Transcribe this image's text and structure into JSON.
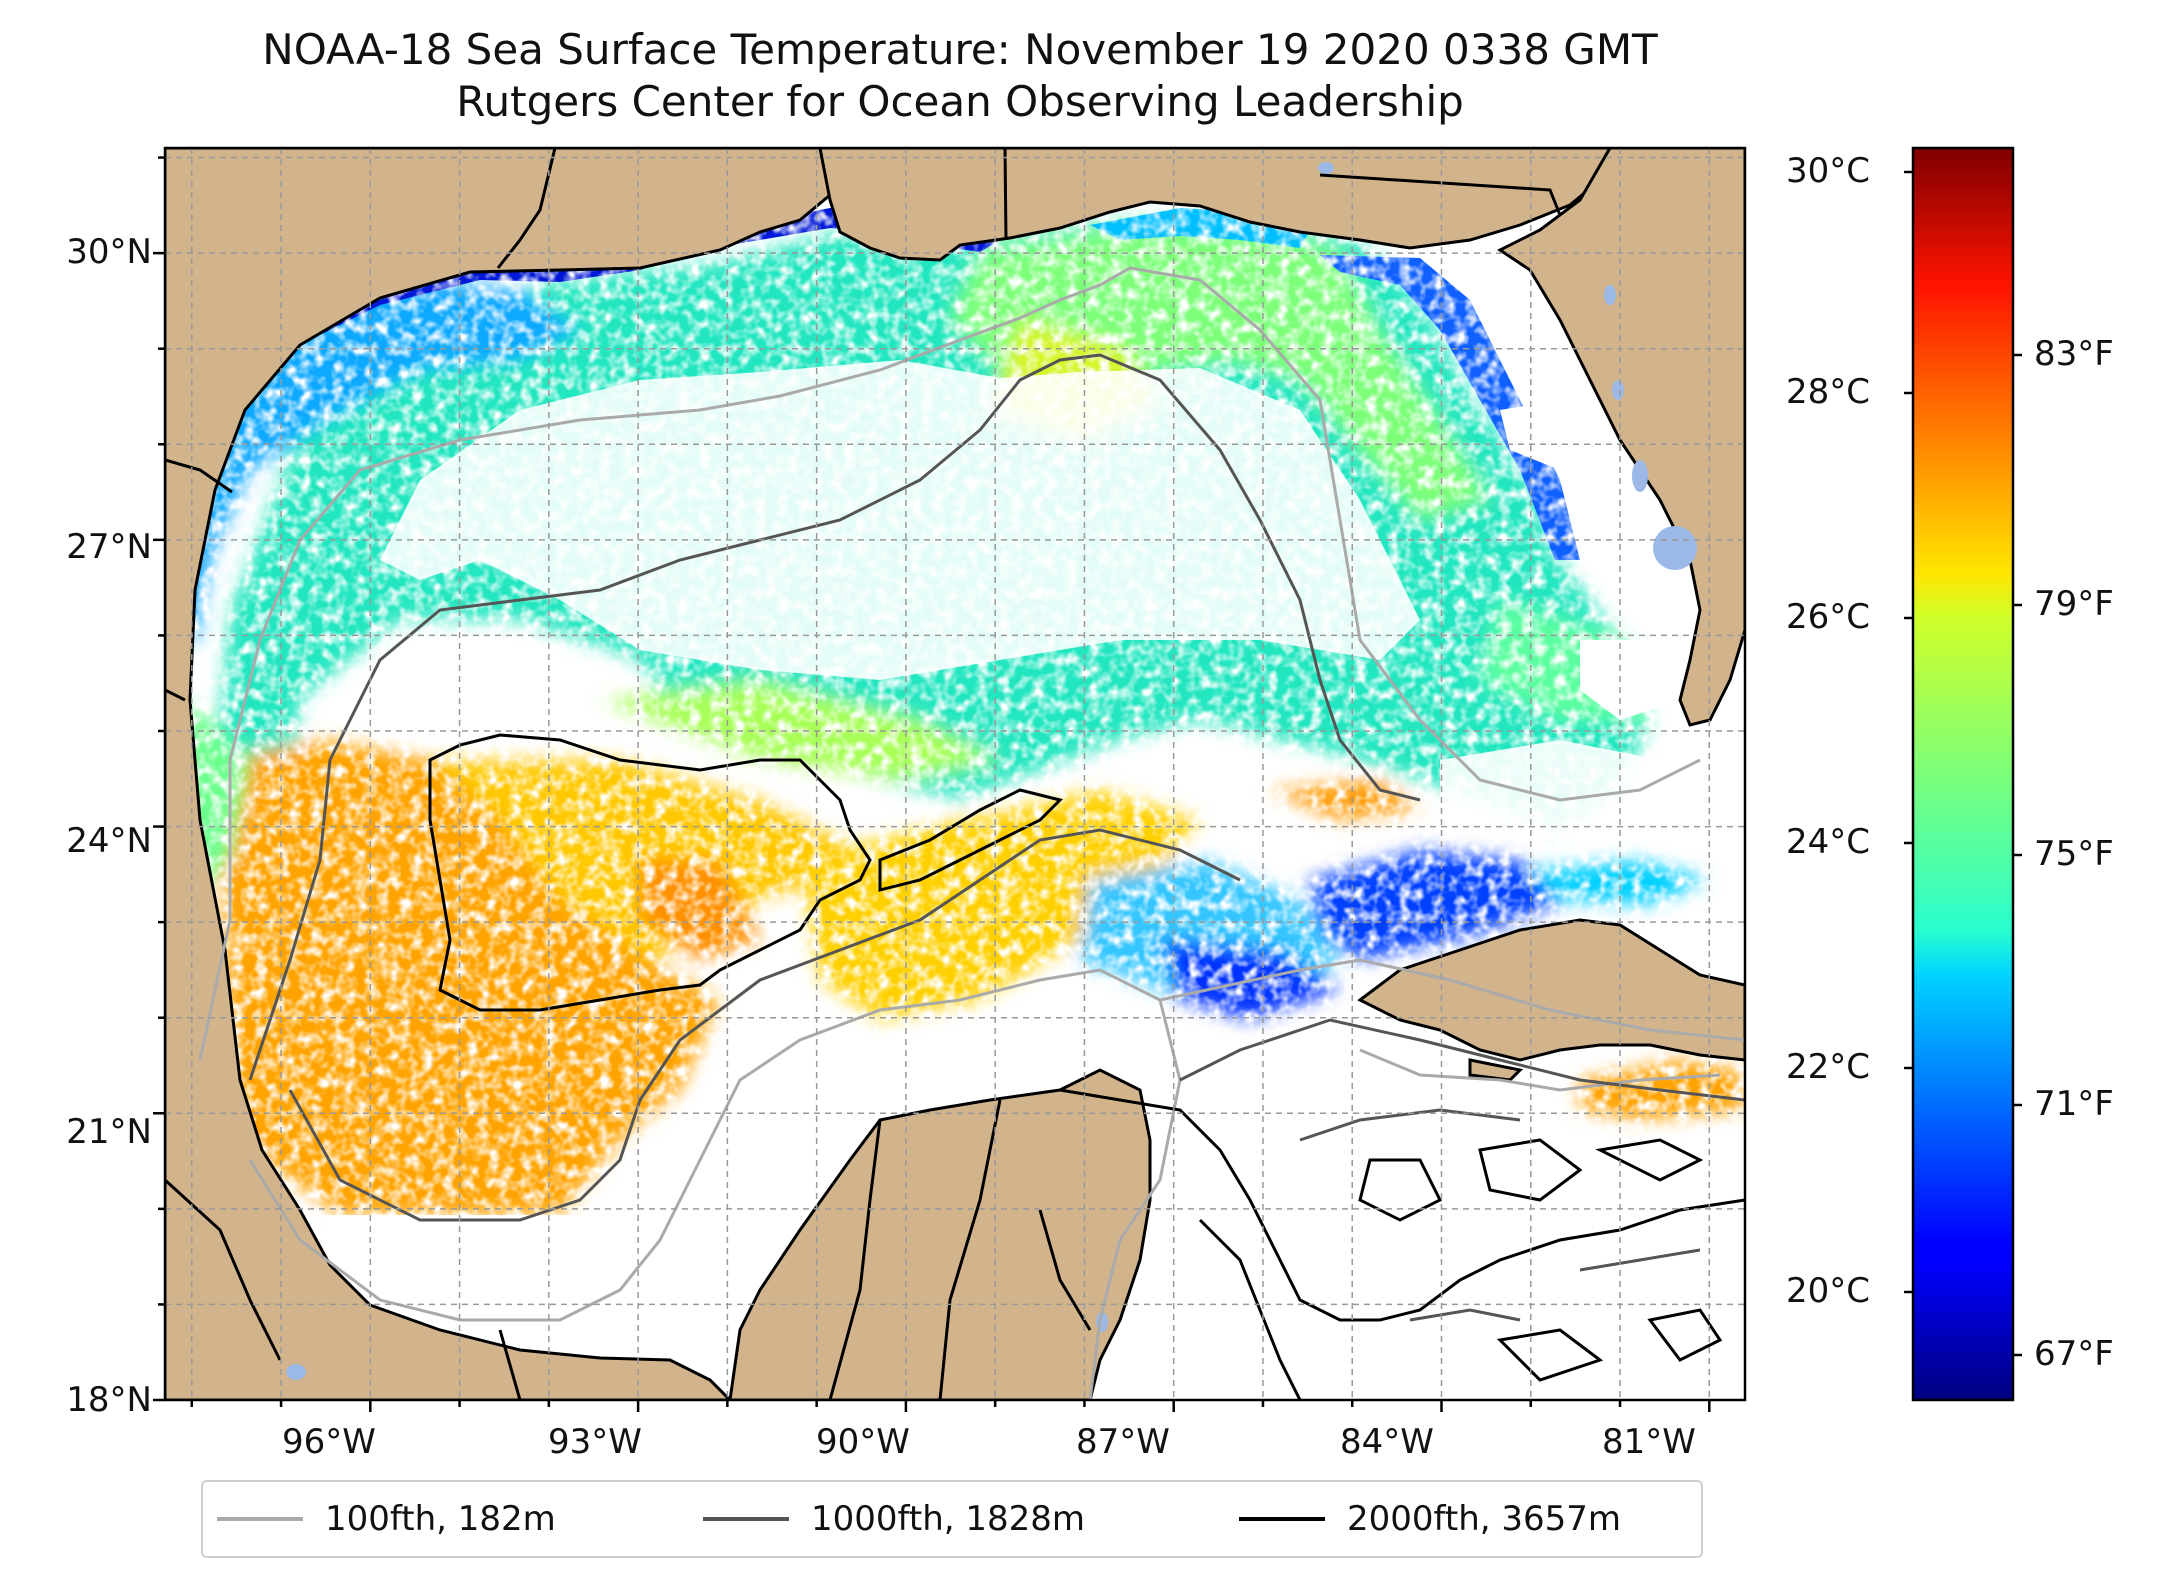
{
  "title": {
    "line1": "NOAA-18 Sea Surface Temperature: November 19 2020 0338 GMT",
    "line2": "Rutgers Center for Ocean Observing Leadership"
  },
  "map": {
    "lon_ticks": [
      "96°W",
      "93°W",
      "90°W",
      "87°W",
      "84°W",
      "81°W"
    ],
    "lat_ticks": [
      "30°N",
      "27°N",
      "24°N",
      "21°N",
      "18°N"
    ],
    "lon_range": [
      -98.3,
      -80.6
    ],
    "lat_range": [
      18.0,
      31.1
    ],
    "land_color": "#d2b48c",
    "lake_color": "#9bb8e6",
    "grid": true
  },
  "colorbar": {
    "celsius_ticks": [
      "30°C",
      "28°C",
      "26°C",
      "24°C",
      "22°C",
      "20°C"
    ],
    "fahrenheit_ticks": [
      "83°F",
      "79°F",
      "75°F",
      "71°F",
      "67°F"
    ],
    "colormap": "jet",
    "range_f": [
      65.5,
      87.0
    ]
  },
  "legend": [
    {
      "label": "100fth, 182m",
      "color": "#aaaaaa"
    },
    {
      "label": "1000fth, 1828m",
      "color": "#555555"
    },
    {
      "label": "2000fth, 3657m",
      "color": "#000000"
    }
  ]
}
